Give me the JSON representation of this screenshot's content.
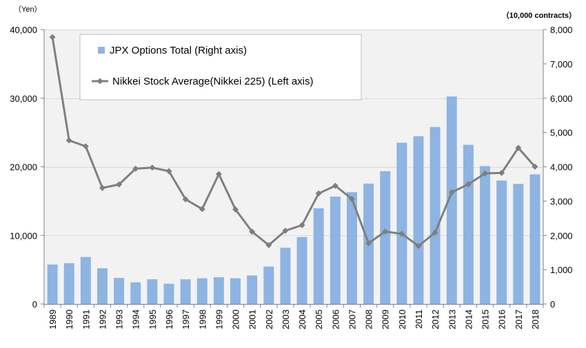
{
  "chart_data": {
    "type": "bar+line",
    "categories": [
      "1989",
      "1990",
      "1991",
      "1992",
      "1993",
      "1994",
      "1995",
      "1996",
      "1997",
      "1998",
      "1999",
      "2000",
      "2001",
      "2002",
      "2003",
      "2004",
      "2005",
      "2006",
      "2007",
      "2008",
      "2009",
      "2010",
      "2011",
      "2012",
      "2013",
      "2014",
      "2015",
      "2016",
      "2017",
      "2018"
    ],
    "series": [
      {
        "name": "JPX Options Total (Right axis)",
        "type": "bar",
        "axis": "right",
        "color": "#8DB4E2",
        "values": [
          1150,
          1190,
          1370,
          1040,
          760,
          630,
          720,
          590,
          720,
          750,
          780,
          750,
          830,
          1090,
          1640,
          1950,
          2790,
          3130,
          3260,
          3510,
          3870,
          4700,
          4890,
          5160,
          6050,
          4640,
          4020,
          3600,
          3500,
          3780
        ]
      },
      {
        "name": "Nikkei Stock Average(Nikkei 225) (Left axis)",
        "type": "line",
        "axis": "left",
        "color": "#7F7F7F",
        "values": [
          38900,
          23850,
          22980,
          16920,
          17420,
          19720,
          19870,
          19360,
          15260,
          13840,
          18930,
          13790,
          10540,
          8580,
          10680,
          11490,
          16110,
          17230,
          15310,
          8860,
          10550,
          10230,
          8460,
          10400,
          16290,
          17450,
          19030,
          19110,
          22760,
          20010
        ]
      }
    ],
    "left_axis": {
      "unit_label": "（Yen）",
      "ylim": [
        0,
        40000
      ],
      "tick_labels": [
        "0",
        "10,000",
        "20,000",
        "30,000",
        "40,000"
      ],
      "tick_values": [
        0,
        10000,
        20000,
        30000,
        40000
      ]
    },
    "right_axis": {
      "unit_label": "（10,000 contracts）",
      "ylim": [
        0,
        8000
      ],
      "tick_labels": [
        "0",
        "1,000",
        "2,000",
        "3,000",
        "4,000",
        "5,000",
        "6,000",
        "7,000",
        "8,000"
      ],
      "tick_values": [
        0,
        1000,
        2000,
        3000,
        4000,
        5000,
        6000,
        7000,
        8000
      ]
    },
    "legend": {
      "placement": "top-left",
      "entries": [
        "JPX Options Total (Right axis)",
        "Nikkei Stock Average(Nikkei 225) (Left axis)"
      ]
    },
    "grid": "horizontal",
    "plot_background": "#F2F2F2",
    "gridline_color": "#D9D9D9"
  }
}
